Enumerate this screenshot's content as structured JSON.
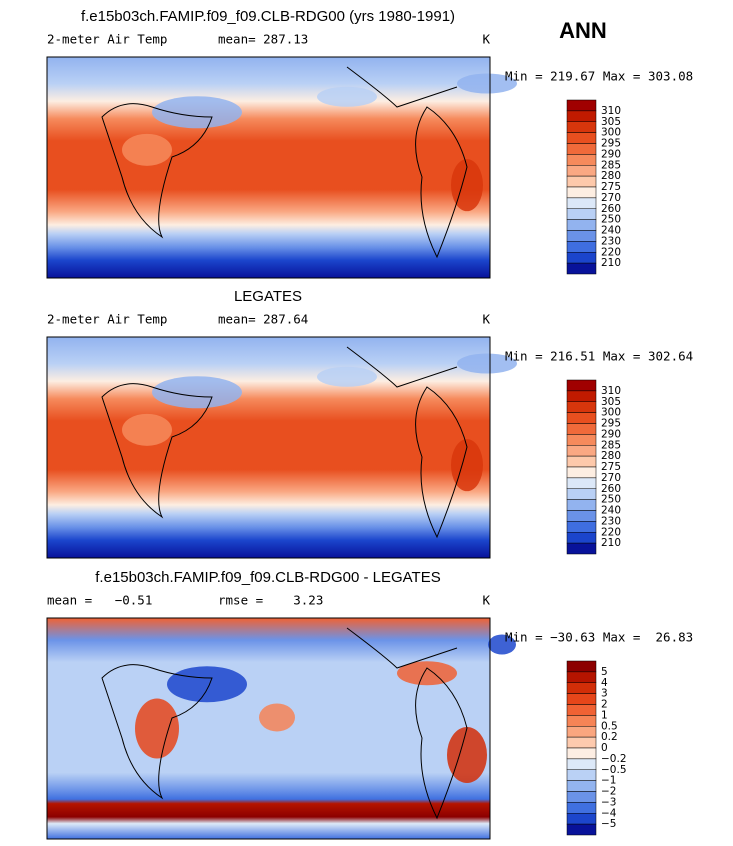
{
  "header": {
    "title": "ANN"
  },
  "panels": [
    {
      "title": "f.e15b03ch.FAMIP.f09_f09.CLB-RDG00 (yrs 1980-1991)",
      "variable": "2-meter Air Temp",
      "stat": "mean= 287.13",
      "unit": "K",
      "range": "Min = 219.67 Max = 303.08",
      "colorbar": {
        "labels": [
          "310",
          "305",
          "300",
          "295",
          "290",
          "285",
          "280",
          "275",
          "270",
          "260",
          "250",
          "240",
          "230",
          "220",
          "210"
        ],
        "colors": [
          "#a00000",
          "#c11a00",
          "#d8360c",
          "#e84f1f",
          "#f06a3a",
          "#f68a5c",
          "#faa883",
          "#fdc9ab",
          "#fdeee2",
          "#dce8f8",
          "#b9d0f5",
          "#92b3ef",
          "#6a92e8",
          "#3f6ee0",
          "#1b45cc",
          "#08129a"
        ]
      }
    },
    {
      "title": "LEGATES",
      "variable": "2-meter Air Temp",
      "stat": "mean= 287.64",
      "unit": "K",
      "range": "Min = 216.51 Max = 302.64",
      "colorbar": {
        "labels": [
          "310",
          "305",
          "300",
          "295",
          "290",
          "285",
          "280",
          "275",
          "270",
          "260",
          "250",
          "240",
          "230",
          "220",
          "210"
        ],
        "colors": [
          "#a00000",
          "#c11a00",
          "#d8360c",
          "#e84f1f",
          "#f06a3a",
          "#f68a5c",
          "#faa883",
          "#fdc9ab",
          "#fdeee2",
          "#dce8f8",
          "#b9d0f5",
          "#92b3ef",
          "#6a92e8",
          "#3f6ee0",
          "#1b45cc",
          "#08129a"
        ]
      }
    },
    {
      "title": "f.e15b03ch.FAMIP.f09_f09.CLB-RDG00 - LEGATES",
      "stat": "mean =   −0.51",
      "stat2": "rmse =    3.23",
      "unit": "K",
      "range": "Min = −30.63 Max =  26.83",
      "colorbar": {
        "labels": [
          "5",
          "4",
          "3",
          "2",
          "1",
          "0.5",
          "0.2",
          "0",
          "−0.2",
          "−0.5",
          "−1",
          "−2",
          "−3",
          "−4",
          "−5"
        ],
        "colors": [
          "#8c0000",
          "#b51400",
          "#d22e08",
          "#e6461a",
          "#f06234",
          "#f68456",
          "#faa67f",
          "#fdcaae",
          "#fdeee3",
          "#dde9f8",
          "#bad1f5",
          "#93b4ef",
          "#6b93e8",
          "#4070e0",
          "#1c46cc",
          "#08129a"
        ]
      }
    }
  ]
}
